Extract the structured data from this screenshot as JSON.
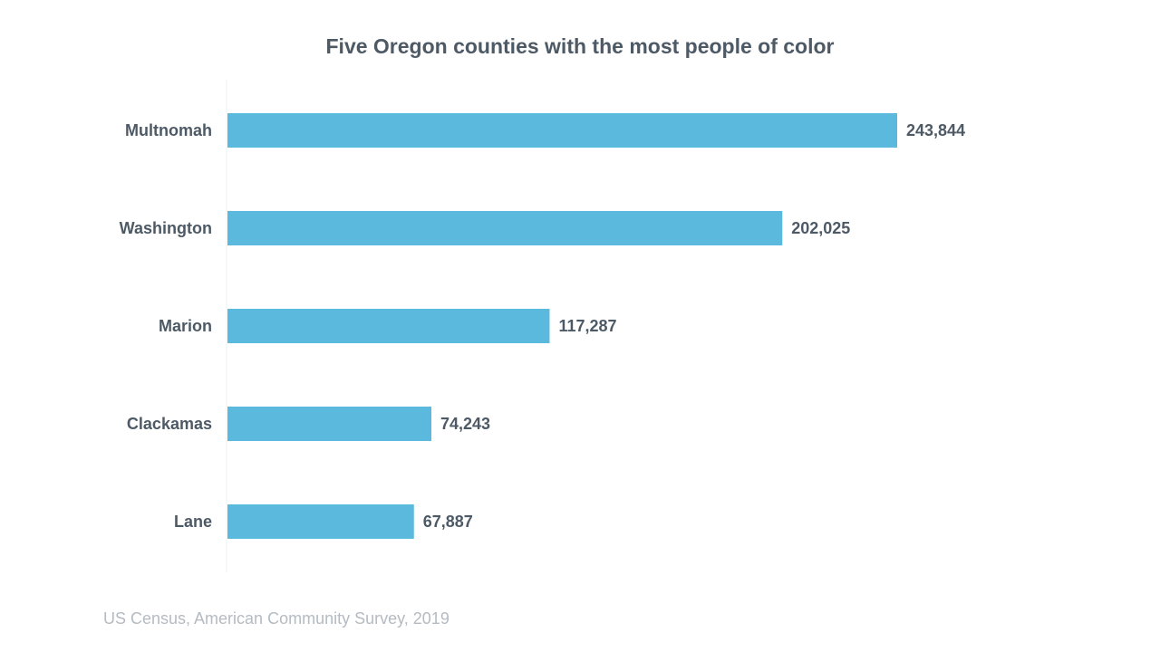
{
  "chart_data": {
    "type": "bar",
    "orientation": "horizontal",
    "title": "Five Oregon counties with the most people of color",
    "categories": [
      "Multnomah",
      "Washington",
      "Marion",
      "Clackamas",
      "Lane"
    ],
    "values": [
      243844,
      202025,
      117287,
      74243,
      67887
    ],
    "value_labels": [
      "243,844",
      "202,025",
      "117,287",
      "74,243",
      "67,887"
    ],
    "xlabel": "",
    "ylabel": "",
    "xlim": [
      0,
      243844
    ],
    "grid": false,
    "legend": "none",
    "bar_color": "#5ab9dc"
  },
  "source": "US Census, American Community Survey, 2019"
}
